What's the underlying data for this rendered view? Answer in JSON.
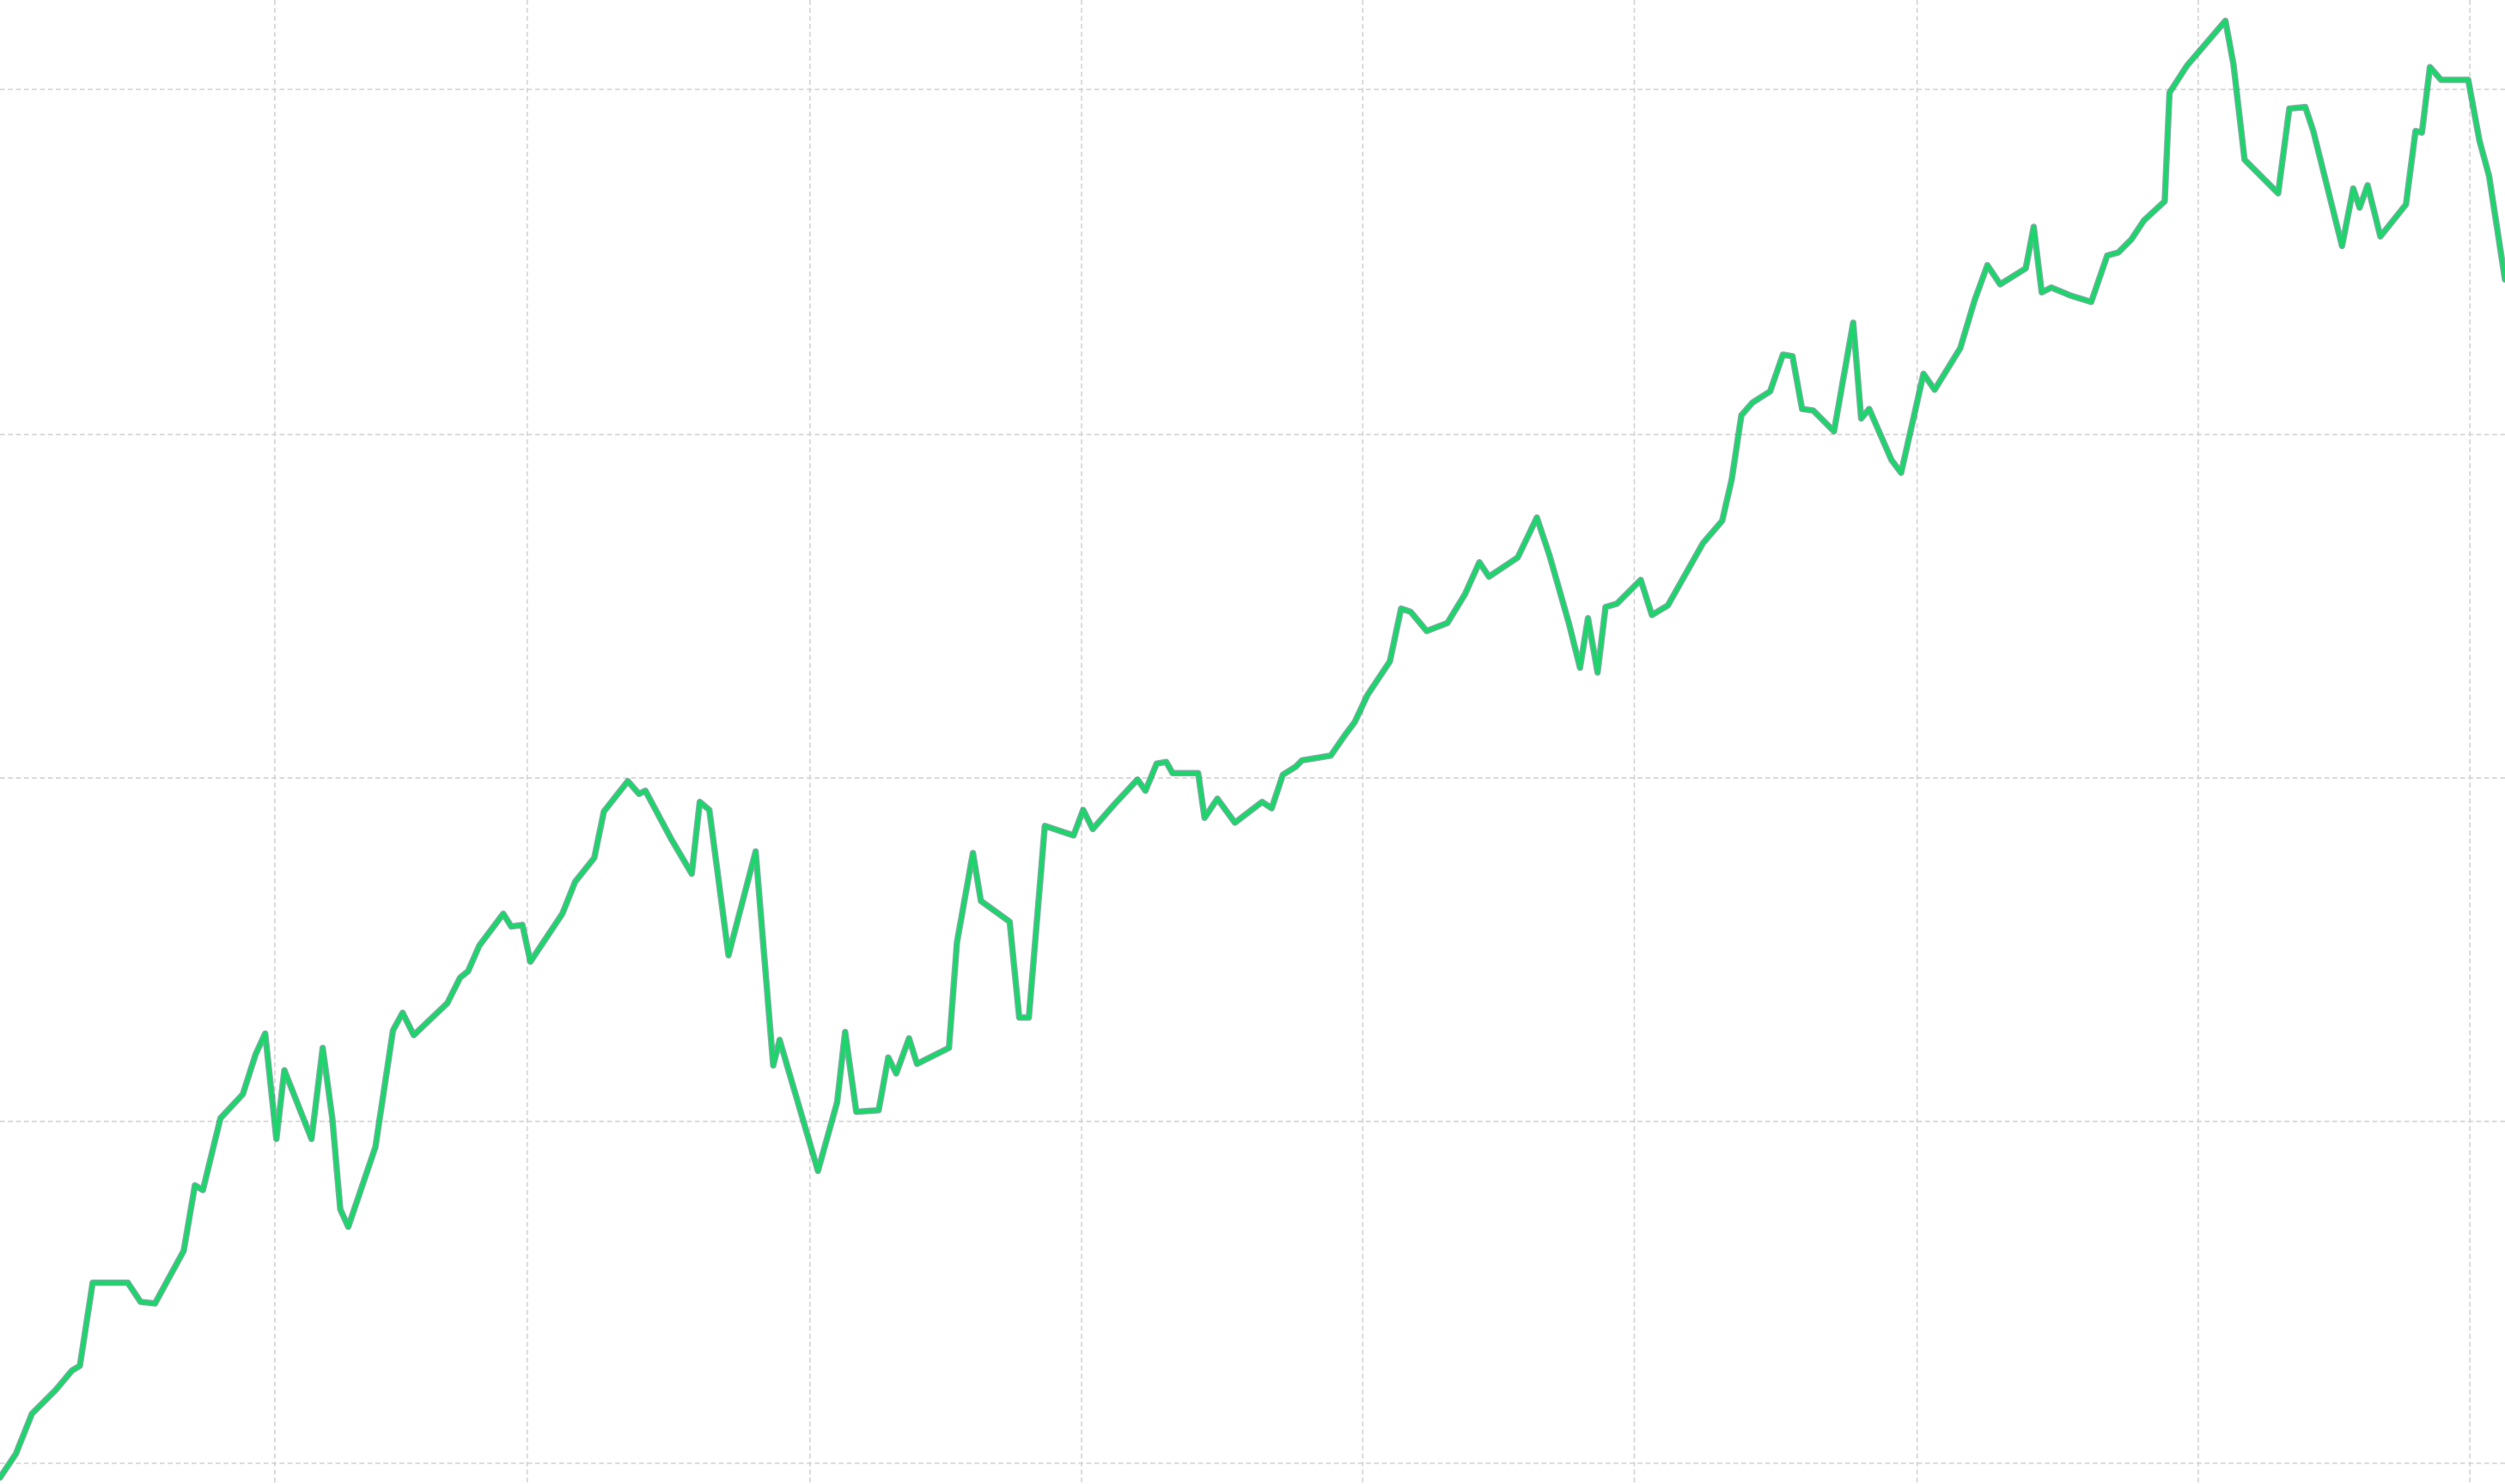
{
  "chart_data": {
    "type": "line",
    "color": "#1ed46c",
    "grid": true,
    "xlim": [
      0,
      1568
    ],
    "xticks": [
      172,
      330,
      507,
      677,
      853,
      1023,
      1200,
      1376,
      1546
    ],
    "ylim": [
      -13,
      916
    ],
    "yticks": [
      0,
      214,
      429,
      644,
      860
    ],
    "x": [
      0,
      10,
      20,
      35,
      45,
      50,
      58,
      80,
      88,
      97,
      115,
      122,
      127,
      138,
      152,
      160,
      166,
      173,
      178,
      195,
      202,
      208,
      213,
      218,
      235,
      246,
      252,
      259,
      280,
      288,
      293,
      300,
      315,
      320,
      327,
      332,
      352,
      360,
      372,
      378,
      393,
      400,
      404,
      420,
      433,
      438,
      444,
      456,
      473,
      484,
      488,
      512,
      524,
      529,
      536,
      550,
      556,
      561,
      569,
      574,
      594,
      599,
      609,
      614,
      632,
      638,
      644,
      654,
      672,
      678,
      684,
      698,
      712,
      717,
      724,
      730,
      734,
      750,
      754,
      762,
      773,
      790,
      796,
      803,
      811,
      815,
      833,
      842,
      848,
      856,
      870,
      877,
      883,
      893,
      906,
      917,
      926,
      932,
      950,
      962,
      970,
      982,
      989,
      994,
      1000,
      1005,
      1012,
      1027,
      1034,
      1044,
      1066,
      1078,
      1084,
      1090,
      1097,
      1108,
      1116,
      1122,
      1128,
      1135,
      1148,
      1160,
      1165,
      1170,
      1184,
      1190,
      1204,
      1211,
      1227,
      1236,
      1244,
      1252,
      1268,
      1273,
      1278,
      1284,
      1296,
      1309,
      1319,
      1326,
      1334,
      1342,
      1355,
      1358,
      1369,
      1393,
      1398,
      1405,
      1412,
      1426,
      1433,
      1443,
      1448,
      1466,
      1473,
      1477,
      1482,
      1490,
      1506,
      1512,
      1516,
      1521,
      1528,
      1545,
      1552,
      1558,
      1568
    ],
    "values": [
      -9,
      6,
      31,
      46,
      58,
      61,
      113,
      113,
      101,
      100,
      133,
      174,
      171,
      216,
      231,
      256,
      269,
      203,
      246,
      203,
      260,
      216,
      159,
      148,
      198,
      271,
      282,
      268,
      288,
      304,
      308,
      324,
      344,
      336,
      337,
      314,
      344,
      364,
      379,
      408,
      427,
      419,
      421,
      391,
      369,
      414,
      409,
      318,
      383,
      249,
      265,
      183,
      226,
      270,
      220,
      221,
      254,
      244,
      266,
      250,
      260,
      326,
      382,
      352,
      339,
      279,
      279,
      399,
      393,
      409,
      397,
      413,
      428,
      421,
      438,
      439,
      432,
      432,
      404,
      416,
      401,
      414,
      410,
      431,
      436,
      440,
      443,
      456,
      464,
      481,
      502,
      535,
      533,
      521,
      526,
      544,
      564,
      555,
      567,
      592,
      568,
      526,
      498,
      529,
      495,
      536,
      538,
      553,
      531,
      537,
      576,
      590,
      616,
      656,
      664,
      671,
      694,
      693,
      660,
      659,
      646,
      714,
      654,
      660,
      628,
      620,
      682,
      672,
      698,
      728,
      750,
      738,
      748,
      774,
      733,
      736,
      731,
      727,
      756,
      758,
      766,
      778,
      790,
      858,
      875,
      903,
      876,
      816,
      809,
      795,
      848,
      849,
      834,
      762,
      798,
      786,
      800,
      768,
      788,
      834,
      833,
      874,
      866,
      866,
      828,
      806,
      741
    ]
  }
}
